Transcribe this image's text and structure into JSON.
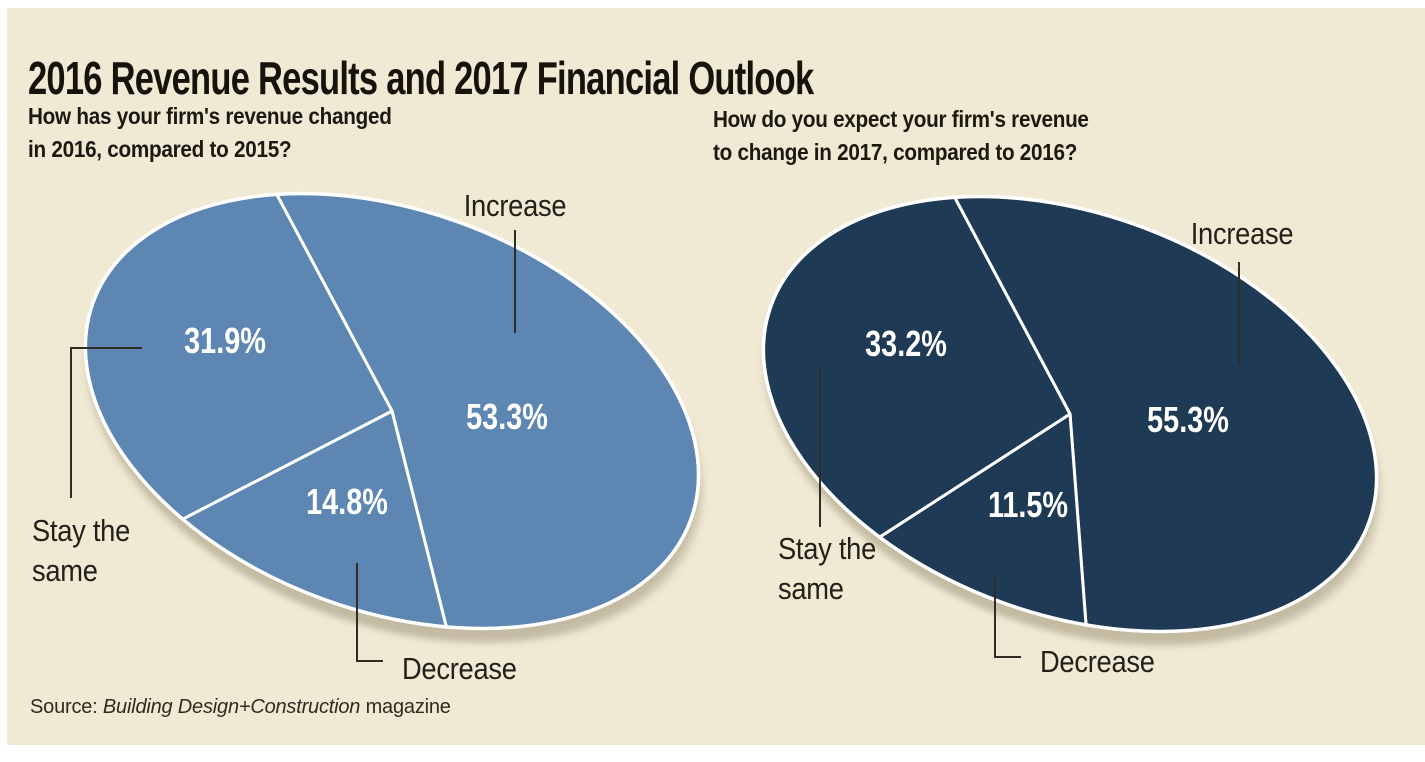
{
  "title": "2016 Revenue Results and 2017 Financial Outlook",
  "source": {
    "prefix": "Source: ",
    "publication": "Building Design+Construction",
    "suffix": " magazine"
  },
  "colors": {
    "background": "#f0e9d4",
    "pie_2016": "#5d87b2",
    "pie_2017": "#1e3a54",
    "divider": "#ffffff",
    "leader_line": "#2f2d26",
    "percent_text": "#ffffff",
    "label_text": "#23211a",
    "title_text": "#16130b"
  },
  "chart_data": [
    {
      "type": "pie",
      "year": "2016",
      "question": "How has your firm's revenue changed in 2016, compared to 2015?",
      "question_lines": [
        "How has your firm's revenue changed",
        "in 2016, compared to 2015?"
      ],
      "color": "#5d87b2",
      "slices": [
        {
          "label": "Increase",
          "value": 53.3,
          "display": "53.3%"
        },
        {
          "label": "Decrease",
          "value": 14.8,
          "display": "14.8%"
        },
        {
          "label": "Stay the same",
          "value": 31.9,
          "display": "31.9%"
        }
      ],
      "stay_label_lines": [
        "Stay the",
        "same"
      ]
    },
    {
      "type": "pie",
      "year": "2017",
      "question": "How do you expect your firm's revenue to change in 2017, compared to 2016?",
      "question_lines": [
        "How do you expect your firm's revenue",
        "to change in 2017, compared to 2016?"
      ],
      "color": "#1e3a54",
      "slices": [
        {
          "label": "Increase",
          "value": 55.3,
          "display": "55.3%"
        },
        {
          "label": "Decrease",
          "value": 11.5,
          "display": "11.5%"
        },
        {
          "label": "Stay the same",
          "value": 33.2,
          "display": "33.2%"
        }
      ],
      "stay_label_lines": [
        "Stay the",
        "same"
      ]
    }
  ]
}
